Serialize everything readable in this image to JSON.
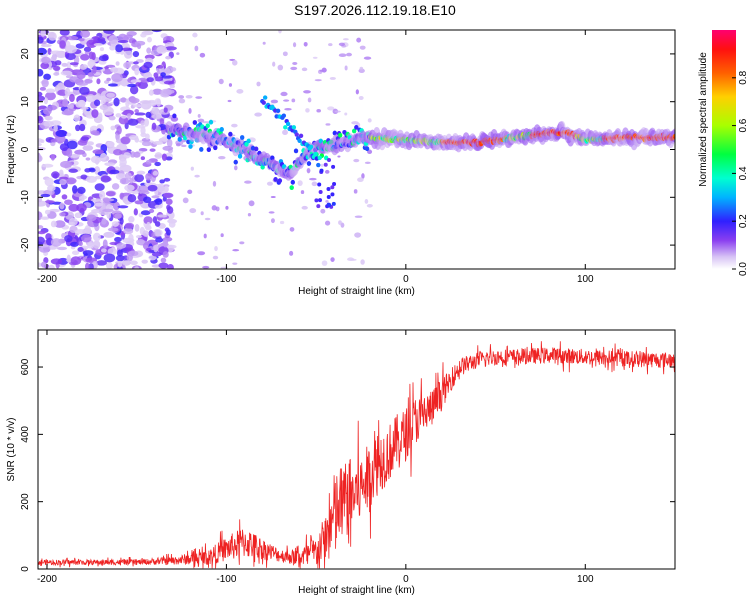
{
  "title": "S197.2026.112.19.18.E10",
  "chart_data": [
    {
      "type": "heatmap",
      "xlabel": "Height of straight line (km)",
      "ylabel": "Frequency (Hz)",
      "xlim": [
        -205,
        150
      ],
      "ylim": [
        -25,
        25
      ],
      "xticks": [
        -200,
        -100,
        0,
        100
      ],
      "yticks": [
        -20,
        -10,
        0,
        10,
        20
      ],
      "ridge": {
        "description_points_x": [
          -130,
          -115,
          -100,
          -90,
          -80,
          -70,
          -65,
          -60,
          -55,
          -50,
          -45,
          -40,
          -30,
          -20,
          0,
          20,
          40,
          60,
          80,
          90,
          100,
          120,
          150
        ],
        "description_points_y": [
          4,
          3,
          2,
          0,
          -2,
          -4,
          -6,
          -3,
          -1,
          0,
          0.5,
          1,
          2,
          2.5,
          2,
          1.5,
          1.5,
          2.5,
          3.5,
          3.5,
          2,
          2.5,
          2.5
        ]
      },
      "colorbar": {
        "label": "Normalized spectral amplitude",
        "ticks": [
          0.0,
          0.2,
          0.4,
          0.6,
          0.8
        ],
        "tick_labels": [
          "0.0",
          "0.2",
          "0.4",
          "0.6",
          "0.8"
        ],
        "range": [
          0,
          1
        ]
      }
    },
    {
      "type": "line",
      "xlabel": "Height of straight line (km)",
      "ylabel": "SNR (10 * v/v)",
      "xlim": [
        -205,
        150
      ],
      "ylim": [
        0,
        710
      ],
      "xticks": [
        -200,
        -100,
        0,
        100
      ],
      "yticks": [
        0,
        200,
        400,
        600
      ],
      "color": "#ee2222",
      "trend_x": [
        -205,
        -150,
        -130,
        -110,
        -100,
        -90,
        -80,
        -70,
        -60,
        -50,
        -45,
        -40,
        -35,
        -30,
        -25,
        -20,
        -15,
        -10,
        -5,
        0,
        5,
        10,
        15,
        20,
        25,
        30,
        40,
        50,
        60,
        80,
        100,
        120,
        150
      ],
      "trend_y": [
        20,
        20,
        25,
        35,
        60,
        80,
        60,
        40,
        35,
        50,
        90,
        150,
        200,
        220,
        240,
        280,
        320,
        340,
        380,
        400,
        440,
        460,
        480,
        520,
        560,
        600,
        620,
        630,
        630,
        635,
        630,
        625,
        620
      ],
      "noise_amplitude_y": [
        10,
        10,
        15,
        30,
        45,
        60,
        40,
        25,
        30,
        60,
        90,
        170,
        150,
        140,
        130,
        120,
        120,
        110,
        100,
        100,
        90,
        80,
        70,
        60,
        40,
        35,
        30,
        30,
        30,
        30,
        30,
        30,
        30
      ]
    }
  ]
}
